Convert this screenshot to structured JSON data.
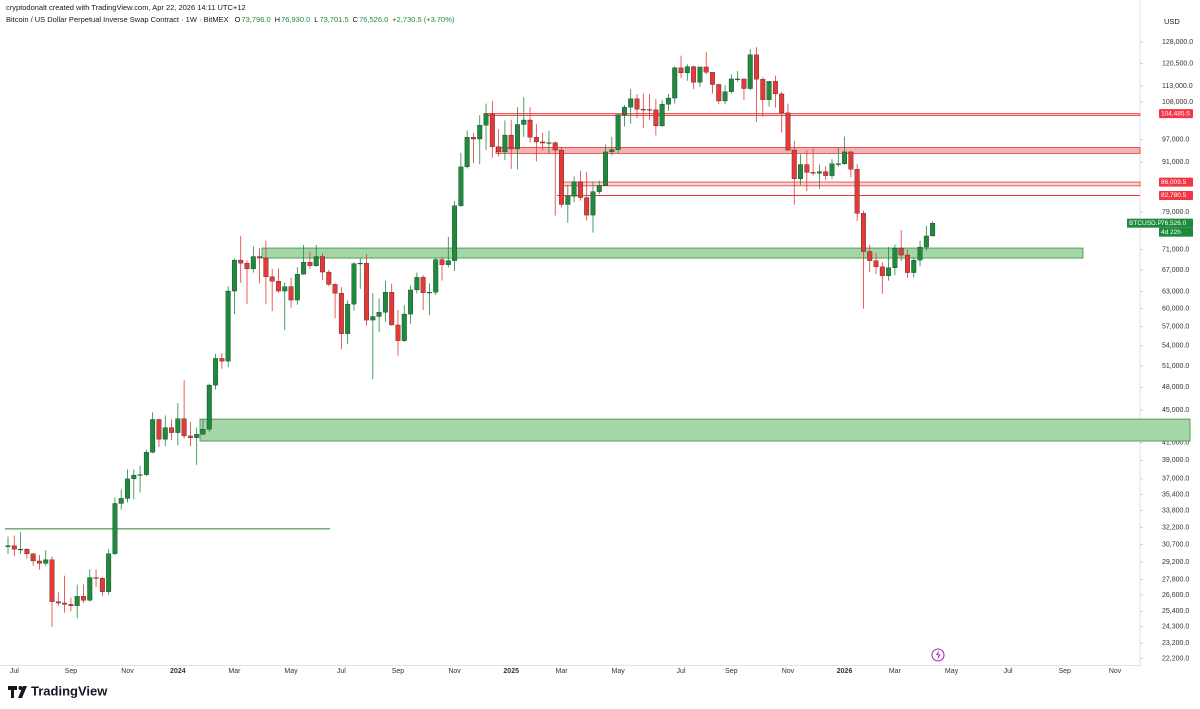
{
  "chart_data": {
    "type": "candlestick",
    "credit": "cryptodonalt created with TradingView.com, Apr 22, 2026 14:11 UTC+12",
    "symbol": "Bitcoin / US Dollar Perpetual Inverse Swap Contract · 1W · BitMEX",
    "ohlc": [
      {
        "key": "O",
        "text": "73,796.0"
      },
      {
        "key": "H",
        "text": "76,930.0"
      },
      {
        "key": "L",
        "text": "73,701.5"
      },
      {
        "key": "C",
        "text": "76,526.0"
      }
    ],
    "change": "+2,730.5 (+3.70%)",
    "currency": "USD",
    "brand": "TradingView",
    "log_scale": true,
    "up_color": "#1e8a3c",
    "down_color": "#e53935",
    "ylim": [
      21800,
      144300
    ],
    "yticks": [
      {
        "value": 128000,
        "label": "128,000.0"
      },
      {
        "value": 120500,
        "label": "120,500.0"
      },
      {
        "value": 113000,
        "label": "113,000.0"
      },
      {
        "value": 108000,
        "label": "108,000.0"
      },
      {
        "value": 97000,
        "label": "97,000.0"
      },
      {
        "value": 91000,
        "label": "91,000.0"
      },
      {
        "value": 79000,
        "label": "79,000.0"
      },
      {
        "value": 71000,
        "label": "71,000.0"
      },
      {
        "value": 67000,
        "label": "67,000.0"
      },
      {
        "value": 63000,
        "label": "63,000.0"
      },
      {
        "value": 60000,
        "label": "60,000.0"
      },
      {
        "value": 57000,
        "label": "57,000.0"
      },
      {
        "value": 54000,
        "label": "54,000.0"
      },
      {
        "value": 51000,
        "label": "51,000.0"
      },
      {
        "value": 48000,
        "label": "48,000.0"
      },
      {
        "value": 45000,
        "label": "45,000.0"
      },
      {
        "value": 43000,
        "label": "43,000.0"
      },
      {
        "value": 41000,
        "label": "41,000.0"
      },
      {
        "value": 39000,
        "label": "39,000.0"
      },
      {
        "value": 37000,
        "label": "37,000.0"
      },
      {
        "value": 35400,
        "label": "35,400.0"
      },
      {
        "value": 33800,
        "label": "33,800.0"
      },
      {
        "value": 32200,
        "label": "32,200.0"
      },
      {
        "value": 30700,
        "label": "30,700.0"
      },
      {
        "value": 29200,
        "label": "29,200.0"
      },
      {
        "value": 27800,
        "label": "27,800.0"
      },
      {
        "value": 26600,
        "label": "26,600.0"
      },
      {
        "value": 25400,
        "label": "25,400.0"
      },
      {
        "value": 24300,
        "label": "24,300.0"
      },
      {
        "value": 23200,
        "label": "23,200.0"
      },
      {
        "value": 22200,
        "label": "22,200.0"
      }
    ],
    "categories": [
      null,
      "Jul",
      null,
      null,
      null,
      null,
      null,
      null,
      null,
      null,
      "Sep",
      null,
      null,
      null,
      null,
      null,
      null,
      null,
      null,
      "Nov",
      null,
      null,
      null,
      null,
      null,
      null,
      null,
      "2024",
      null,
      null,
      null,
      null,
      null,
      null,
      null,
      null,
      "Mar",
      null,
      null,
      null,
      null,
      null,
      null,
      null,
      null,
      "May",
      null,
      null,
      null,
      null,
      null,
      null,
      null,
      "Jul",
      null,
      null,
      null,
      null,
      null,
      null,
      null,
      null,
      "Sep",
      null,
      null,
      null,
      null,
      null,
      null,
      null,
      null,
      "Nov",
      null,
      null,
      null,
      null,
      null,
      null,
      null,
      null,
      "2025",
      null,
      null,
      null,
      null,
      null,
      null,
      null,
      "Mar",
      null,
      null,
      null,
      null,
      null,
      null,
      null,
      null,
      "May",
      null,
      null,
      null,
      null,
      null,
      null,
      null,
      null,
      null,
      "Jul",
      null,
      null,
      null,
      null,
      null,
      null,
      null,
      "Sep",
      null,
      null,
      null,
      null,
      null,
      null,
      null,
      null,
      "Nov",
      null,
      null,
      null,
      null,
      null,
      null,
      null,
      null,
      "2026",
      null,
      null,
      null,
      null,
      null,
      null,
      null,
      "Mar",
      null,
      null,
      null,
      null,
      null,
      null,
      null,
      null,
      "May",
      null,
      null,
      null,
      null,
      null,
      null,
      null,
      null,
      "Jul",
      null,
      null,
      null,
      null,
      null,
      null,
      null,
      null,
      "Sep",
      null,
      null,
      null,
      null,
      null,
      null,
      null,
      "Nov",
      null,
      null,
      null,
      null
    ],
    "open": [
      30500,
      30600,
      30300,
      30300,
      29900,
      29300,
      29100,
      29400,
      26100,
      26000,
      25900,
      25800,
      26500,
      26200,
      27950,
      27900,
      26850,
      29900,
      34500,
      35000,
      37000,
      37400,
      37450,
      39900,
      43800,
      41400,
      42800,
      42200,
      43900,
      41800,
      41600,
      42000,
      42600,
      48300,
      52100,
      51700,
      63100,
      68900,
      68300,
      67200,
      69600,
      69300,
      65700,
      64900,
      63100,
      63900,
      61500,
      66200,
      68500,
      67800,
      69600,
      66600,
      64300,
      62700,
      55900,
      60800,
      68200,
      68300,
      58100,
      58700,
      59400,
      62900,
      57300,
      54800,
      59100,
      63300,
      65600,
      62800,
      62900,
      69000,
      68000,
      68800,
      80400,
      89800,
      97700,
      97200,
      101100,
      104400,
      95100,
      93700,
      98300,
      94500,
      101300,
      102600,
      97700,
      96400,
      96100,
      96200,
      94200,
      80700,
      82600,
      86100,
      82300,
      78300,
      83700,
      85200,
      93700,
      94300,
      104100,
      106400,
      109000,
      105800,
      105700,
      105600,
      100900,
      107300,
      109200,
      119000,
      117300,
      119400,
      114200,
      119300,
      117500,
      113500,
      108300,
      111200,
      115300,
      115300,
      112200,
      123500,
      115200,
      108700,
      114500,
      110500,
      104700,
      94200,
      86800,
      90400,
      88400,
      88200,
      88600,
      87600,
      90600,
      90600,
      93700,
      89200,
      78700,
      70600,
      68800,
      67600,
      65900,
      67400,
      71300,
      69900,
      66500,
      68900,
      71500,
      73796,
      null,
      null,
      null,
      null,
      null,
      null,
      null,
      null,
      null,
      null,
      null,
      null,
      null,
      null,
      null,
      null,
      null,
      null,
      null,
      null,
      null,
      null,
      null,
      null,
      null,
      null,
      null,
      null,
      null,
      null,
      null,
      null,
      null
    ],
    "high": [
      31400,
      31500,
      31800,
      30400,
      29950,
      29800,
      30200,
      29700,
      26800,
      28100,
      26400,
      27400,
      27400,
      28600,
      28600,
      28000,
      30300,
      35100,
      35900,
      38000,
      38000,
      38400,
      40200,
      44700,
      43900,
      44300,
      43800,
      45900,
      49000,
      43500,
      42800,
      43800,
      48500,
      52800,
      52900,
      64000,
      69200,
      73800,
      68900,
      71700,
      71300,
      72800,
      67200,
      67300,
      64700,
      65500,
      67500,
      71900,
      70600,
      71900,
      70200,
      67000,
      64500,
      63800,
      61400,
      68500,
      69300,
      70100,
      62700,
      61800,
      65000,
      64400,
      59800,
      60600,
      64100,
      66500,
      66000,
      64500,
      69400,
      69500,
      73600,
      81500,
      93500,
      99600,
      98800,
      104000,
      107500,
      108300,
      99900,
      102500,
      102700,
      106400,
      109500,
      106400,
      101400,
      98900,
      99500,
      96500,
      95000,
      85300,
      87400,
      88800,
      88500,
      86100,
      86400,
      95700,
      97800,
      104300,
      107100,
      112000,
      110400,
      110600,
      110500,
      108900,
      108600,
      110500,
      119500,
      123200,
      120200,
      119800,
      119300,
      124500,
      117700,
      113700,
      113300,
      116800,
      117900,
      115400,
      125600,
      126200,
      115900,
      114600,
      116400,
      111200,
      107500,
      96600,
      93100,
      94200,
      94600,
      90400,
      90000,
      91800,
      94800,
      97900,
      93900,
      90500,
      79300,
      72000,
      70300,
      68500,
      71500,
      72000,
      75000,
      71000,
      69500,
      72800,
      76000,
      76930,
      null,
      null,
      null,
      null,
      null,
      null,
      null,
      null,
      null,
      null,
      null,
      null,
      null,
      null,
      null,
      null,
      null,
      null,
      null,
      null,
      null,
      null,
      null,
      null,
      null,
      null,
      null,
      null,
      null,
      null,
      null,
      null,
      null
    ],
    "low": [
      29900,
      29700,
      29900,
      29500,
      28900,
      28600,
      28900,
      24300,
      25800,
      25300,
      25400,
      24900,
      26000,
      26100,
      27200,
      26500,
      26600,
      29800,
      33900,
      34600,
      34900,
      35600,
      37300,
      39800,
      40500,
      40600,
      41300,
      40700,
      41500,
      40600,
      38500,
      41900,
      42300,
      47700,
      50600,
      50800,
      59100,
      64600,
      60800,
      66500,
      64500,
      60800,
      59600,
      62800,
      56500,
      60200,
      60700,
      66100,
      67200,
      67600,
      65100,
      64000,
      58400,
      53500,
      54300,
      59700,
      63500,
      57200,
      49100,
      56200,
      57800,
      57200,
      52500,
      54600,
      57500,
      62700,
      59800,
      58900,
      62400,
      65000,
      67500,
      66800,
      80200,
      89400,
      90800,
      90500,
      94200,
      92200,
      92500,
      91500,
      89300,
      89200,
      97800,
      96200,
      91200,
      94100,
      93300,
      78200,
      80000,
      76600,
      81200,
      81600,
      77100,
      74500,
      83100,
      85100,
      92800,
      93400,
      100700,
      101500,
      103100,
      100300,
      102600,
      98200,
      100600,
      105300,
      107500,
      115600,
      114700,
      112000,
      112700,
      116800,
      110600,
      107300,
      107300,
      110600,
      114400,
      108600,
      111600,
      102000,
      103500,
      106600,
      106300,
      99000,
      94000,
      80600,
      85300,
      83800,
      87600,
      84400,
      86500,
      86800,
      89800,
      90300,
      87200,
      77000,
      60000,
      66600,
      66200,
      62600,
      65000,
      66000,
      68700,
      65500,
      65600,
      67700,
      70800,
      73701.5,
      null,
      null,
      null,
      null,
      null,
      null,
      null,
      null,
      null,
      null,
      null,
      null,
      null,
      null,
      null,
      null,
      null,
      null,
      null,
      null,
      null,
      null,
      null,
      null,
      null,
      null,
      null,
      null,
      null,
      null,
      null,
      null,
      null
    ],
    "close": [
      30600,
      30300,
      30300,
      29900,
      29300,
      29100,
      29400,
      26100,
      26000,
      25900,
      25800,
      26500,
      26200,
      27950,
      27900,
      26850,
      29900,
      34500,
      35000,
      37000,
      37400,
      37450,
      39900,
      43800,
      41400,
      42800,
      42200,
      43900,
      41800,
      41600,
      42000,
      42600,
      48300,
      52100,
      51700,
      63100,
      68900,
      68300,
      67200,
      69600,
      69300,
      65700,
      64900,
      63100,
      63900,
      61500,
      66200,
      68500,
      67800,
      69600,
      66600,
      64300,
      62700,
      55900,
      60800,
      68200,
      68300,
      58100,
      58700,
      59400,
      62900,
      57300,
      54800,
      59100,
      63300,
      65600,
      62800,
      62900,
      69000,
      68000,
      68800,
      80400,
      89800,
      97700,
      97200,
      101100,
      104400,
      95100,
      93700,
      98300,
      94500,
      101300,
      102600,
      97700,
      96400,
      96100,
      96200,
      94200,
      80700,
      82600,
      86100,
      82300,
      78300,
      83700,
      85200,
      93700,
      94300,
      104100,
      106400,
      109000,
      105800,
      105700,
      105600,
      100900,
      107300,
      109200,
      119000,
      117300,
      119400,
      114200,
      119300,
      117500,
      113500,
      108300,
      111200,
      115300,
      115300,
      112200,
      123500,
      115200,
      108700,
      114500,
      110500,
      104700,
      94200,
      86800,
      90400,
      88400,
      88200,
      88600,
      87600,
      90600,
      90600,
      93700,
      89200,
      78700,
      70600,
      68800,
      67600,
      65900,
      67400,
      71300,
      69900,
      66500,
      68900,
      71500,
      73796,
      76526,
      null,
      null,
      null,
      null,
      null,
      null,
      null,
      null,
      null,
      null,
      null,
      null,
      null,
      null,
      null,
      null,
      null,
      null,
      null,
      null,
      null,
      null,
      null,
      null,
      null,
      null,
      null,
      null,
      null,
      null,
      null,
      null,
      null
    ],
    "zones": [
      {
        "low": 69300,
        "high": 71300,
        "fill": "#a5d6a7",
        "stroke": "#388e3c"
      },
      {
        "low": 41200,
        "high": 43850,
        "fill": "#a5d6a7",
        "stroke": "#388e3c"
      },
      {
        "low": 103900,
        "high": 104485.5,
        "fill": "#f8c4c4",
        "stroke": "#e53935"
      },
      {
        "low": 93300,
        "high": 94900,
        "fill": "#f4b3b3",
        "stroke": "#e53935"
      },
      {
        "low": 85100,
        "high": 86009.5,
        "fill": "#fbd7d7",
        "stroke": "#e53935"
      }
    ],
    "lines": [
      {
        "value": 82780.5,
        "color": "#e53935"
      },
      {
        "value": 32100,
        "color": "#2e7d32"
      }
    ],
    "price_tags": [
      {
        "value": 104485.5,
        "label": "104,485.5",
        "color": "#f23645"
      },
      {
        "value": 86009.5,
        "label": "86,009.5",
        "color": "#f23645"
      },
      {
        "value": 82780.5,
        "label": "82,780.5",
        "color": "#f23645"
      },
      {
        "value": 76526,
        "label": "76,526.0",
        "color": "#1e8a3c"
      }
    ],
    "symbol_tag": "BTCUSD.P",
    "countdown": "4d 22h"
  }
}
